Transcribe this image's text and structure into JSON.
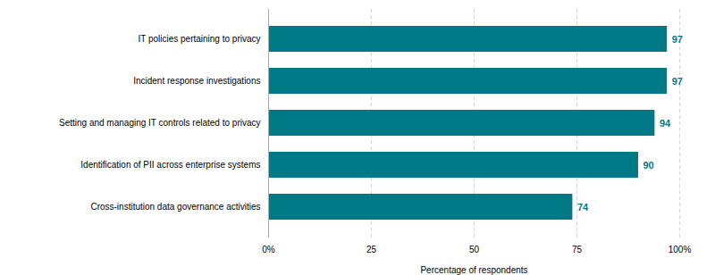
{
  "chart_data": {
    "type": "bar",
    "orientation": "horizontal",
    "xlabel": "Percentage of respondents",
    "categories": [
      "Cross-institution data governance activities",
      "Identification of PII across enterprise systems",
      "Setting and managing IT controls related to privacy",
      "Incident response investigations",
      "IT policies pertaining to privacy"
    ],
    "values": [
      74,
      90,
      94,
      97,
      97
    ],
    "color": "#007A87",
    "xlim": [
      0,
      100
    ],
    "xticks": [
      {
        "value": 0,
        "label": "0%"
      },
      25,
      50,
      75,
      {
        "value": 100,
        "label": "100%"
      }
    ],
    "grid": true,
    "data_labels": true
  }
}
